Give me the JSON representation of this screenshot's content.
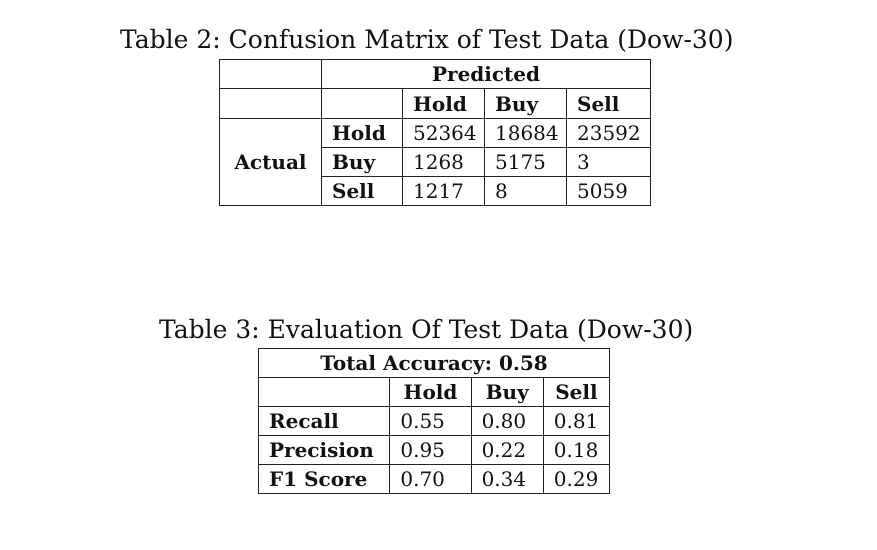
{
  "table2": {
    "caption": "Table 2: Confusion Matrix of Test Data (Dow-30)",
    "predicted_header": "Predicted",
    "actual_header": "Actual",
    "columns": [
      "Hold",
      "Buy",
      "Sell"
    ],
    "rows": [
      {
        "label": "Hold",
        "values": [
          "52364",
          "18684",
          "23592"
        ]
      },
      {
        "label": "Buy",
        "values": [
          "1268",
          "5175",
          "3"
        ]
      },
      {
        "label": "Sell",
        "values": [
          "1217",
          "8",
          "5059"
        ]
      }
    ]
  },
  "table3": {
    "caption": "Table 3: Evaluation Of Test Data (Dow-30)",
    "total_accuracy": "Total Accuracy: 0.58",
    "columns": [
      "Hold",
      "Buy",
      "Sell"
    ],
    "rows": [
      {
        "label": "Recall",
        "values": [
          "0.55",
          "0.80",
          "0.81"
        ]
      },
      {
        "label": "Precision",
        "values": [
          "0.95",
          "0.22",
          "0.18"
        ]
      },
      {
        "label": "F1 Score",
        "values": [
          "0.70",
          "0.34",
          "0.29"
        ]
      }
    ]
  }
}
